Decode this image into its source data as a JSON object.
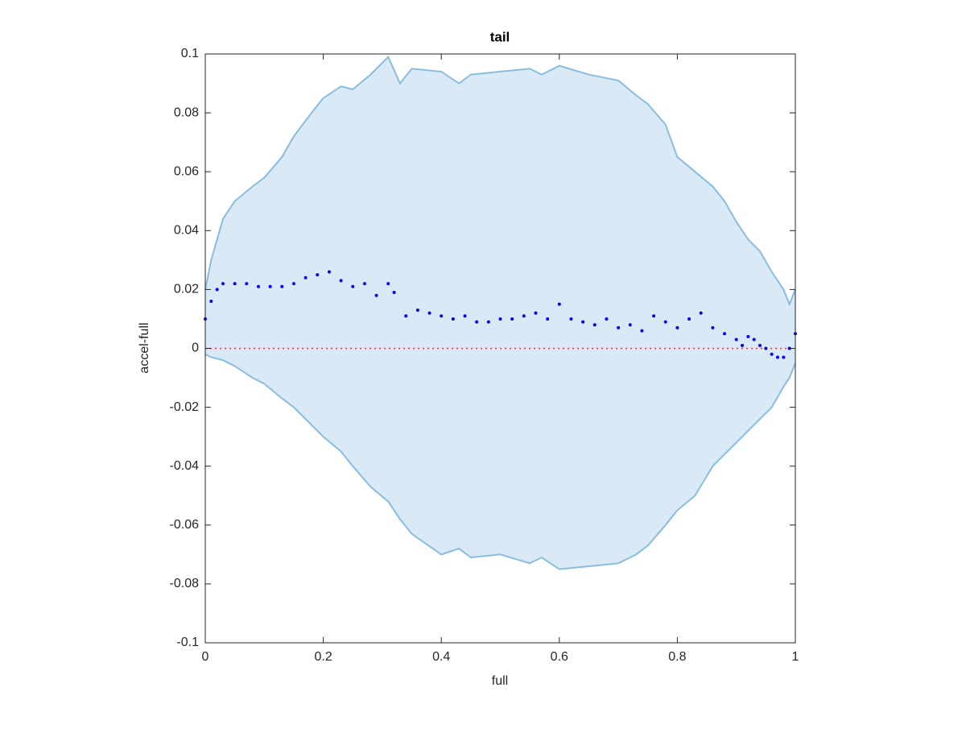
{
  "chart_data": {
    "type": "scatter",
    "title": "tail",
    "xlabel": "full",
    "ylabel": "accel-full",
    "xlim": [
      0,
      1
    ],
    "ylim": [
      -0.1,
      0.1
    ],
    "xticks": [
      0,
      0.2,
      0.4,
      0.6,
      0.8,
      1
    ],
    "yticks": [
      -0.1,
      -0.08,
      -0.06,
      -0.04,
      -0.02,
      0,
      0.02,
      0.04,
      0.06,
      0.08,
      0.1
    ],
    "grid": false,
    "band": {
      "fill": "#d9e9f5",
      "color": "#88bde0",
      "x": [
        0,
        0.01,
        0.03,
        0.05,
        0.08,
        0.1,
        0.13,
        0.15,
        0.18,
        0.2,
        0.23,
        0.25,
        0.28,
        0.31,
        0.33,
        0.35,
        0.4,
        0.43,
        0.45,
        0.5,
        0.55,
        0.57,
        0.6,
        0.65,
        0.7,
        0.73,
        0.75,
        0.78,
        0.8,
        0.83,
        0.86,
        0.88,
        0.9,
        0.92,
        0.94,
        0.96,
        0.98,
        0.99,
        1.0
      ],
      "upper": [
        0.02,
        0.03,
        0.044,
        0.05,
        0.055,
        0.058,
        0.065,
        0.072,
        0.08,
        0.085,
        0.089,
        0.088,
        0.093,
        0.099,
        0.09,
        0.095,
        0.094,
        0.09,
        0.093,
        0.094,
        0.095,
        0.093,
        0.096,
        0.093,
        0.091,
        0.086,
        0.083,
        0.076,
        0.065,
        0.06,
        0.055,
        0.05,
        0.043,
        0.037,
        0.033,
        0.026,
        0.02,
        0.015,
        0.02
      ],
      "lower": [
        -0.002,
        -0.003,
        -0.004,
        -0.006,
        -0.01,
        -0.012,
        -0.017,
        -0.02,
        -0.026,
        -0.03,
        -0.035,
        -0.04,
        -0.047,
        -0.052,
        -0.058,
        -0.063,
        -0.07,
        -0.068,
        -0.071,
        -0.07,
        -0.073,
        -0.071,
        -0.075,
        -0.074,
        -0.073,
        -0.07,
        -0.067,
        -0.06,
        -0.055,
        -0.05,
        -0.04,
        -0.036,
        -0.032,
        -0.028,
        -0.024,
        -0.02,
        -0.013,
        -0.01,
        -0.005
      ]
    },
    "reference_line": {
      "y": 0,
      "color": "#ff3333"
    },
    "color": "#0000ff",
    "x": [
      0,
      0.01,
      0.02,
      0.03,
      0.05,
      0.07,
      0.09,
      0.11,
      0.13,
      0.15,
      0.17,
      0.19,
      0.21,
      0.23,
      0.25,
      0.27,
      0.29,
      0.31,
      0.32,
      0.34,
      0.36,
      0.38,
      0.4,
      0.42,
      0.44,
      0.46,
      0.48,
      0.5,
      0.52,
      0.54,
      0.56,
      0.58,
      0.6,
      0.62,
      0.64,
      0.66,
      0.68,
      0.7,
      0.72,
      0.74,
      0.76,
      0.78,
      0.8,
      0.82,
      0.84,
      0.86,
      0.88,
      0.9,
      0.91,
      0.92,
      0.93,
      0.94,
      0.95,
      0.96,
      0.97,
      0.98,
      0.99,
      1.0
    ],
    "values": [
      0.01,
      0.016,
      0.02,
      0.022,
      0.022,
      0.022,
      0.021,
      0.021,
      0.021,
      0.022,
      0.024,
      0.025,
      0.026,
      0.023,
      0.021,
      0.022,
      0.018,
      0.022,
      0.019,
      0.011,
      0.013,
      0.012,
      0.011,
      0.01,
      0.011,
      0.009,
      0.009,
      0.01,
      0.01,
      0.011,
      0.012,
      0.01,
      0.015,
      0.01,
      0.009,
      0.008,
      0.01,
      0.007,
      0.008,
      0.006,
      0.011,
      0.009,
      0.007,
      0.01,
      0.012,
      0.007,
      0.005,
      0.003,
      0.001,
      0.004,
      0.003,
      0.001,
      0,
      -0.002,
      -0.003,
      -0.003,
      0,
      0.005
    ]
  }
}
